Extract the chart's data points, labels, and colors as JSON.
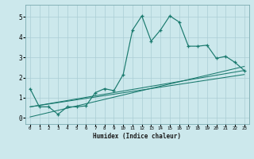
{
  "xlabel": "Humidex (Indice chaleur)",
  "ylabel": "",
  "bg_color": "#cce8ec",
  "grid_color": "#aacdd4",
  "line_color": "#1a7a6e",
  "xlim": [
    -0.5,
    23.5
  ],
  "ylim": [
    -0.3,
    5.6
  ],
  "xticks": [
    0,
    1,
    2,
    3,
    4,
    5,
    6,
    7,
    8,
    9,
    10,
    11,
    12,
    13,
    14,
    15,
    16,
    17,
    18,
    19,
    20,
    21,
    22,
    23
  ],
  "yticks": [
    0,
    1,
    2,
    3,
    4,
    5
  ],
  "main_x": [
    0,
    1,
    2,
    3,
    4,
    5,
    6,
    7,
    8,
    9,
    10,
    11,
    12,
    13,
    14,
    15,
    16,
    17,
    18,
    19,
    20,
    21,
    22,
    23
  ],
  "main_y": [
    1.45,
    0.55,
    0.55,
    0.18,
    0.55,
    0.55,
    0.6,
    1.25,
    1.45,
    1.35,
    2.15,
    4.35,
    5.05,
    3.8,
    4.35,
    5.05,
    4.75,
    3.55,
    3.55,
    3.6,
    2.95,
    3.05,
    2.75,
    2.35
  ],
  "line2_x": [
    0,
    23
  ],
  "line2_y": [
    0.55,
    2.35
  ],
  "line3_x": [
    0,
    23
  ],
  "line3_y": [
    0.55,
    2.15
  ],
  "line4_x": [
    0,
    23
  ],
  "line4_y": [
    0.05,
    2.55
  ]
}
